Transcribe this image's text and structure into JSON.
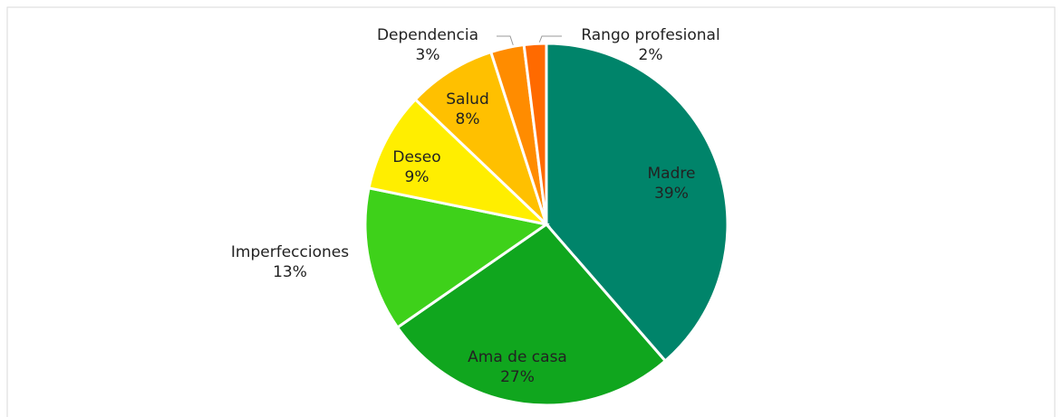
{
  "chart_data": {
    "type": "pie",
    "categories": [
      "Madre",
      "Ama de casa",
      "Imperfecciones",
      "Deseo",
      "Salud",
      "Dependencia",
      "Rango profesional"
    ],
    "values": [
      39,
      27,
      13,
      9,
      8,
      3,
      2
    ],
    "value_labels": [
      "39%",
      "27%",
      "13%",
      "9%",
      "8%",
      "3%",
      "2%"
    ],
    "colors": [
      "#00846a",
      "#10a61e",
      "#3ed11a",
      "#ffee00",
      "#ffc000",
      "#ff8c00",
      "#ff6a00"
    ]
  }
}
